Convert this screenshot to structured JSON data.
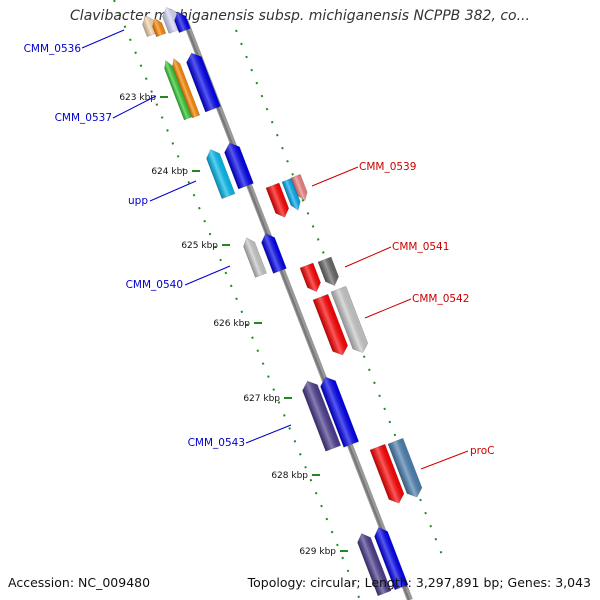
{
  "title": "Clavibacter michiganensis subsp. michiganensis NCPPB 382, co...",
  "footer": {
    "accession": "Accession: NC_009480",
    "summary": "Topology: circular; Length: 3,297,891 bp; Genes: 3,043"
  },
  "colors": {
    "forward_label": "#0000cc",
    "reverse_label": "#cc0000",
    "backbone": "#888888",
    "tick": "#228822"
  },
  "kbp_ticks": [
    "623 kbp",
    "624 kbp",
    "625 kbp",
    "626 kbp",
    "627 kbp",
    "628 kbp",
    "629 kbp"
  ],
  "gene_labels": [
    {
      "text": "CMM_0536",
      "strand": "forward"
    },
    {
      "text": "CMM_0537",
      "strand": "forward"
    },
    {
      "text": "upp",
      "strand": "forward"
    },
    {
      "text": "CMM_0540",
      "strand": "forward"
    },
    {
      "text": "CMM_0543",
      "strand": "forward"
    },
    {
      "text": "CMM_0539",
      "strand": "reverse"
    },
    {
      "text": "CMM_0541",
      "strand": "reverse"
    },
    {
      "text": "CMM_0542",
      "strand": "reverse"
    },
    {
      "text": "proC",
      "strand": "reverse"
    }
  ]
}
